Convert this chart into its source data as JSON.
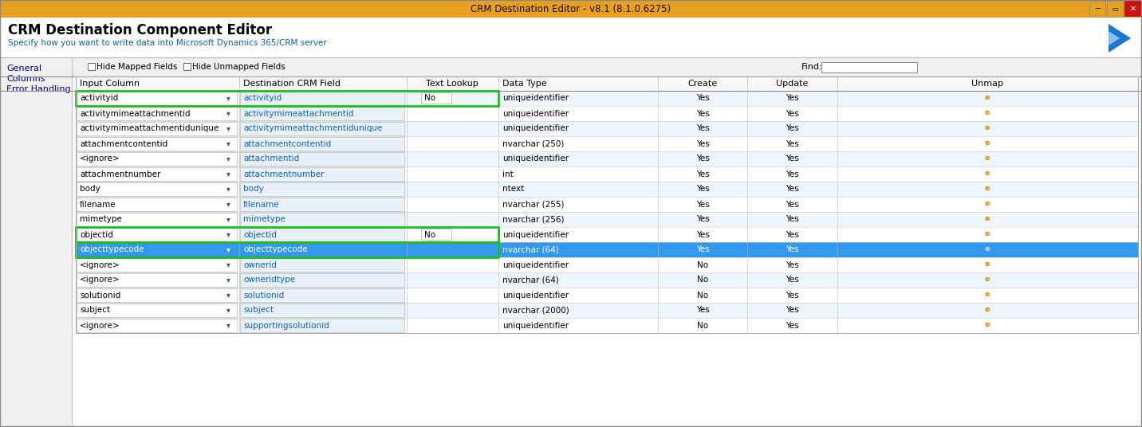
{
  "title_bar_text": "CRM Destination Editor - v8.1 (8.1.0.6275)",
  "title_bar_color": "#E8A020",
  "title_bar_text_color": "#3A2000",
  "header_title": "CRM Destination Component Editor",
  "header_subtitle": "Specify how you want to write data into Microsoft Dynamics 365/CRM server",
  "subtitle_color": "#1060A0",
  "bg_color": "#F0F0F0",
  "tab_labels": [
    "General",
    "Columns",
    "Error Handling"
  ],
  "checkboxes": [
    "Hide Mapped Fields",
    "Hide Unmapped Fields"
  ],
  "find_label": "Find:",
  "col_headers": [
    "Input Column",
    "Destination CRM Field",
    "Text Lookup",
    "Data Type",
    "Create",
    "Update",
    "Unmap"
  ],
  "rows": [
    {
      "input": "activityid",
      "dest": "activityid",
      "lookup": "No",
      "dtype": "uniqueidentifier",
      "create": "Yes",
      "update": "Yes",
      "green_border": true,
      "highlight": false
    },
    {
      "input": "activitymimeattachmentid",
      "dest": "activitymimeattachmentid",
      "lookup": "",
      "dtype": "uniqueidentifier",
      "create": "Yes",
      "update": "Yes",
      "green_border": false,
      "highlight": false
    },
    {
      "input": "activitymimeattachmentidunique",
      "dest": "activitymimeattachmentidunique",
      "lookup": "",
      "dtype": "uniqueidentifier",
      "create": "Yes",
      "update": "Yes",
      "green_border": false,
      "highlight": false
    },
    {
      "input": "attachmentcontentid",
      "dest": "attachmentcontentid",
      "lookup": "",
      "dtype": "nvarchar (250)",
      "create": "Yes",
      "update": "Yes",
      "green_border": false,
      "highlight": false
    },
    {
      "input": "<ignore>",
      "dest": "attachmentid",
      "lookup": "",
      "dtype": "uniqueidentifier",
      "create": "Yes",
      "update": "Yes",
      "green_border": false,
      "highlight": false
    },
    {
      "input": "attachmentnumber",
      "dest": "attachmentnumber",
      "lookup": "",
      "dtype": "int",
      "create": "Yes",
      "update": "Yes",
      "green_border": false,
      "highlight": false
    },
    {
      "input": "body",
      "dest": "body",
      "lookup": "",
      "dtype": "ntext",
      "create": "Yes",
      "update": "Yes",
      "green_border": false,
      "highlight": false
    },
    {
      "input": "filename",
      "dest": "filename",
      "lookup": "",
      "dtype": "nvarchar (255)",
      "create": "Yes",
      "update": "Yes",
      "green_border": false,
      "highlight": false
    },
    {
      "input": "mimetype",
      "dest": "mimetype",
      "lookup": "",
      "dtype": "nvarchar (256)",
      "create": "Yes",
      "update": "Yes",
      "green_border": false,
      "highlight": false
    },
    {
      "input": "objectid",
      "dest": "objectid",
      "lookup": "No",
      "dtype": "uniqueidentifier",
      "create": "Yes",
      "update": "Yes",
      "green_border": true,
      "highlight": false
    },
    {
      "input": "objecttypecode",
      "dest": "objecttypecode",
      "lookup": "",
      "dtype": "nvarchar (64)",
      "create": "Yes",
      "update": "Yes",
      "green_border": true,
      "highlight": true
    },
    {
      "input": "<ignore>",
      "dest": "ownerid",
      "lookup": "",
      "dtype": "uniqueidentifier",
      "create": "No",
      "update": "Yes",
      "green_border": false,
      "highlight": false
    },
    {
      "input": "<ignore>",
      "dest": "owneridtype",
      "lookup": "",
      "dtype": "nvarchar (64)",
      "create": "No",
      "update": "Yes",
      "green_border": false,
      "highlight": false
    },
    {
      "input": "solutionid",
      "dest": "solutionid",
      "lookup": "",
      "dtype": "uniqueidentifier",
      "create": "No",
      "update": "Yes",
      "green_border": false,
      "highlight": false
    },
    {
      "input": "subject",
      "dest": "subject",
      "lookup": "",
      "dtype": "nvarchar (2000)",
      "create": "Yes",
      "update": "Yes",
      "green_border": false,
      "highlight": false
    },
    {
      "input": "<ignore>",
      "dest": "supportingsolutionid",
      "lookup": "",
      "dtype": "uniqueidentifier",
      "create": "No",
      "update": "Yes",
      "green_border": false,
      "highlight": false
    }
  ],
  "highlight_color": "#3399EE",
  "highlight_text_color": "#FFFFFF",
  "green_border_color": "#22BB22",
  "row_alt_colors": [
    "#EEF5FC",
    "#FFFFFF"
  ],
  "input_col_bg": "#FFFFFF",
  "dest_col_bg": "#E8F0F8",
  "dest_text_color": "#1060C0",
  "grid_line_color": "#C8C8C8",
  "header_line_color": "#888888",
  "col_sep_color": "#BBBBBB"
}
